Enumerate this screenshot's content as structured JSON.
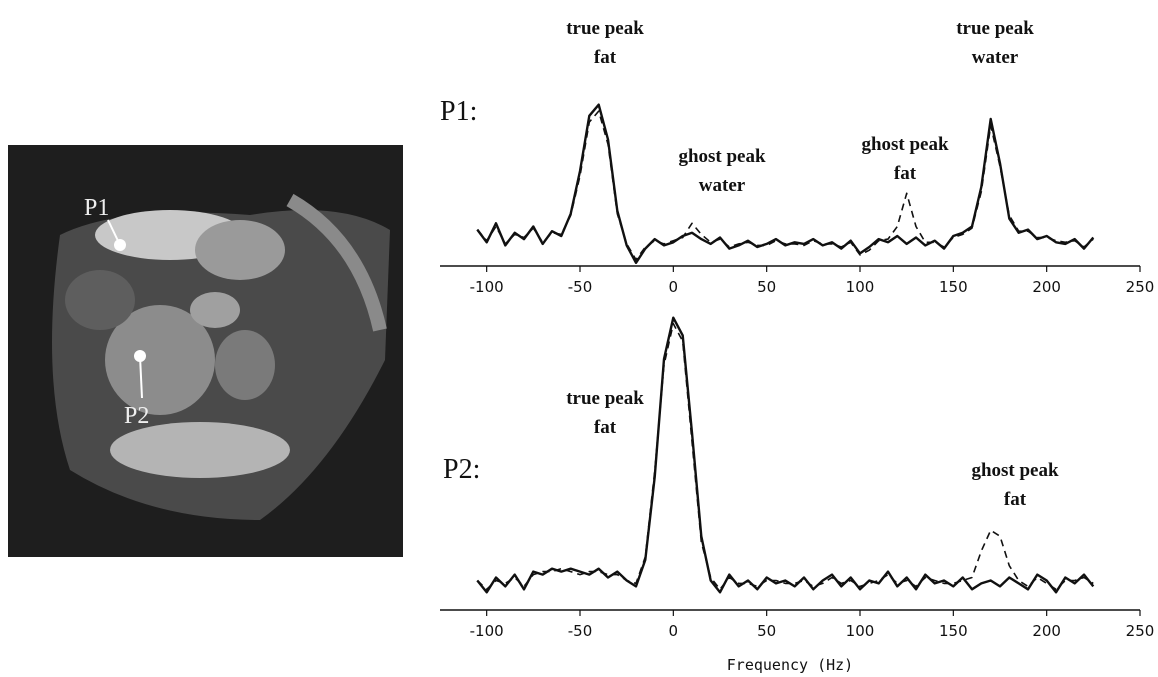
{
  "image_labels": [
    "P1",
    "P2"
  ],
  "chart_data": [
    {
      "type": "line",
      "panel_label": "P1:",
      "annotations": [
        [
          "true peak",
          "fat"
        ],
        [
          "true peak",
          "water"
        ],
        [
          "ghost peak",
          "water"
        ],
        [
          "ghost peak",
          "fat"
        ]
      ],
      "x": [
        -105,
        -100,
        -95,
        -90,
        -85,
        -80,
        -75,
        -70,
        -65,
        -60,
        -55,
        -50,
        -45,
        -40,
        -35,
        -30,
        -25,
        -20,
        -15,
        -10,
        -5,
        0,
        5,
        10,
        15,
        20,
        25,
        30,
        35,
        40,
        45,
        50,
        55,
        60,
        65,
        70,
        75,
        80,
        85,
        90,
        95,
        100,
        105,
        110,
        115,
        120,
        125,
        130,
        135,
        140,
        145,
        150,
        155,
        160,
        165,
        170,
        175,
        180,
        185,
        190,
        195,
        200,
        205,
        210,
        215,
        220,
        225
      ],
      "series": [
        {
          "color": "#111111",
          "linestyle": "solid",
          "values": [
            18,
            10,
            22,
            8,
            16,
            12,
            20,
            9,
            17,
            14,
            28,
            55,
            90,
            97,
            75,
            30,
            8,
            -3,
            6,
            12,
            8,
            10,
            14,
            16,
            12,
            9,
            13,
            6,
            8,
            11,
            7,
            9,
            12,
            8,
            10,
            9,
            12,
            8,
            10,
            6,
            11,
            3,
            7,
            12,
            10,
            14,
            9,
            13,
            8,
            11,
            6,
            14,
            16,
            20,
            45,
            88,
            60,
            25,
            16,
            18,
            12,
            14,
            10,
            9,
            12,
            6,
            13
          ]
        },
        {
          "color": "#111111",
          "linestyle": "dashed",
          "values": [
            18,
            11,
            20,
            9,
            15,
            13,
            19,
            10,
            16,
            15,
            27,
            52,
            86,
            93,
            72,
            28,
            9,
            -1,
            7,
            11,
            9,
            11,
            13,
            22,
            15,
            10,
            12,
            7,
            9,
            10,
            8,
            8,
            11,
            9,
            9,
            8,
            11,
            9,
            9,
            7,
            10,
            2,
            5,
            11,
            12,
            20,
            41,
            20,
            10,
            10,
            7,
            13,
            15,
            19,
            42,
            84,
            58,
            27,
            17,
            17,
            13,
            13,
            11,
            10,
            11,
            7,
            12
          ]
        }
      ],
      "xlim": [
        -125,
        250
      ],
      "xticks": [
        -100,
        -50,
        0,
        50,
        100,
        150,
        200,
        250
      ],
      "ylim": [
        -5,
        100
      ]
    },
    {
      "type": "line",
      "panel_label": "P2:",
      "xlabel": "Frequency (Hz)",
      "annotations": [
        [
          "true peak",
          "fat"
        ],
        [
          "ghost peak",
          "fat"
        ]
      ],
      "x": [
        -105,
        -100,
        -95,
        -90,
        -85,
        -80,
        -75,
        -70,
        -65,
        -60,
        -55,
        -50,
        -45,
        -40,
        -35,
        -30,
        -25,
        -20,
        -15,
        -10,
        -5,
        0,
        5,
        10,
        15,
        20,
        25,
        30,
        35,
        40,
        45,
        50,
        55,
        60,
        65,
        70,
        75,
        80,
        85,
        90,
        95,
        100,
        105,
        110,
        115,
        120,
        125,
        130,
        135,
        140,
        145,
        150,
        155,
        160,
        165,
        170,
        175,
        180,
        185,
        190,
        195,
        200,
        205,
        210,
        215,
        220,
        225
      ],
      "series": [
        {
          "color": "#111111",
          "linestyle": "solid",
          "values": [
            5,
            1,
            6,
            3,
            7,
            2,
            8,
            7,
            9,
            8,
            9,
            8,
            7,
            9,
            6,
            8,
            5,
            3,
            12,
            40,
            80,
            94,
            88,
            55,
            20,
            5,
            1,
            7,
            3,
            5,
            2,
            6,
            4,
            5,
            3,
            6,
            2,
            5,
            7,
            3,
            6,
            2,
            5,
            4,
            8,
            3,
            6,
            2,
            7,
            4,
            5,
            3,
            6,
            2,
            4,
            5,
            3,
            6,
            4,
            2,
            7,
            5,
            1,
            6,
            4,
            7,
            3
          ]
        },
        {
          "color": "#111111",
          "linestyle": "dashed",
          "values": [
            5,
            2,
            5,
            4,
            6,
            3,
            7,
            8,
            8,
            9,
            8,
            7,
            8,
            8,
            7,
            7,
            5,
            4,
            13,
            42,
            78,
            92,
            86,
            52,
            18,
            6,
            2,
            6,
            4,
            4,
            3,
            5,
            5,
            4,
            4,
            5,
            3,
            4,
            6,
            4,
            5,
            3,
            4,
            5,
            7,
            4,
            5,
            3,
            6,
            5,
            4,
            4,
            5,
            6,
            15,
            22,
            20,
            10,
            5,
            3,
            6,
            4,
            2,
            5,
            5,
            6,
            4
          ]
        }
      ],
      "xlim": [
        -125,
        250
      ],
      "xticks": [
        -100,
        -50,
        0,
        50,
        100,
        150,
        200,
        250
      ],
      "ylim": [
        -5,
        100
      ]
    }
  ]
}
